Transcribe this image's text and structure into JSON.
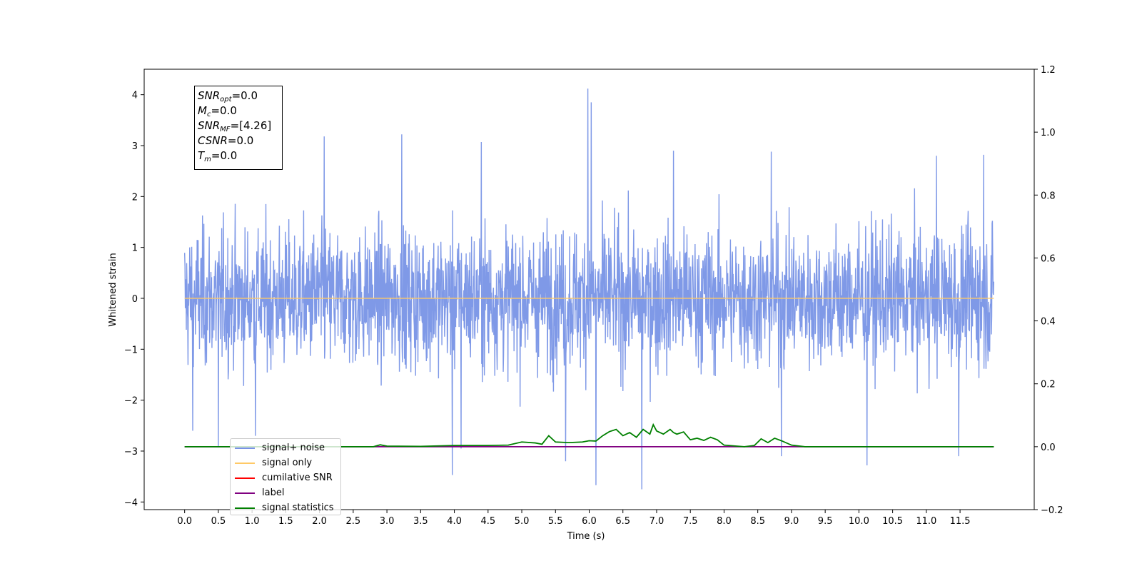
{
  "chart_data": {
    "type": "line",
    "title": "",
    "xlabel": "Time (s)",
    "ylabel": "Whitened strain",
    "xlim": [
      -0.6,
      12.6
    ],
    "ylim": [
      -4.15,
      4.5
    ],
    "y2lim": [
      -0.2,
      1.2
    ],
    "x_ticks": [
      "0.0",
      "0.5",
      "1.0",
      "1.5",
      "2.0",
      "2.5",
      "3.0",
      "3.5",
      "4.0",
      "4.5",
      "5.0",
      "5.5",
      "6.0",
      "6.5",
      "7.0",
      "7.5",
      "8.0",
      "8.5",
      "9.0",
      "9.5",
      "10.0",
      "10.5",
      "11.0",
      "11.5"
    ],
    "y_ticks": [
      "4",
      "3",
      "2",
      "1",
      "0",
      "−1",
      "−2",
      "−3",
      "−4"
    ],
    "y2_ticks": [
      "1.2",
      "1.0",
      "0.8",
      "0.6",
      "0.4",
      "0.2",
      "0.0",
      "−0.2"
    ],
    "grid": false,
    "legend_position": "lower-left",
    "noise_envelope": {
      "time_range": [
        0.0,
        12.0
      ],
      "typical_upper": 1.6,
      "typical_lower": -1.6,
      "spikes": [
        {
          "x": 0.12,
          "y": -2.6
        },
        {
          "x": 0.5,
          "y": -2.9
        },
        {
          "x": 1.05,
          "y": -2.7
        },
        {
          "x": 2.07,
          "y": 3.18
        },
        {
          "x": 3.22,
          "y": 3.22
        },
        {
          "x": 3.97,
          "y": -3.47
        },
        {
          "x": 4.1,
          "y": -2.95
        },
        {
          "x": 4.4,
          "y": 3.07
        },
        {
          "x": 5.65,
          "y": -3.2
        },
        {
          "x": 5.98,
          "y": 4.12
        },
        {
          "x": 6.03,
          "y": 3.85
        },
        {
          "x": 6.1,
          "y": -3.67
        },
        {
          "x": 6.78,
          "y": -3.75
        },
        {
          "x": 7.25,
          "y": 2.9
        },
        {
          "x": 8.7,
          "y": 2.88
        },
        {
          "x": 8.85,
          "y": -3.1
        },
        {
          "x": 10.12,
          "y": -3.28
        },
        {
          "x": 11.15,
          "y": 2.8
        },
        {
          "x": 11.48,
          "y": -3.1
        },
        {
          "x": 11.85,
          "y": 2.82
        }
      ]
    },
    "series": [
      {
        "name": "signal+ noise",
        "color": "#7893e6",
        "axis": "left",
        "kind": "noise"
      },
      {
        "name": "signal only",
        "color": "#ffc966",
        "axis": "left",
        "x": [
          0.0,
          12.0
        ],
        "y": [
          0.0,
          0.0
        ]
      },
      {
        "name": "cumilative SNR",
        "color": "#ff0000",
        "axis": "left",
        "x": [],
        "y": []
      },
      {
        "name": "label",
        "color": "#800080",
        "axis": "right",
        "x": [
          0.0,
          12.0
        ],
        "y": [
          0.0,
          0.0
        ]
      },
      {
        "name": "signal statistics",
        "color": "#008000",
        "axis": "right",
        "x": [
          0.0,
          2.0,
          2.8,
          2.9,
          3.0,
          3.5,
          4.0,
          4.5,
          4.8,
          5.0,
          5.2,
          5.3,
          5.4,
          5.5,
          5.7,
          5.9,
          6.0,
          6.1,
          6.2,
          6.3,
          6.4,
          6.5,
          6.6,
          6.7,
          6.8,
          6.9,
          6.95,
          7.0,
          7.1,
          7.2,
          7.25,
          7.3,
          7.4,
          7.5,
          7.6,
          7.7,
          7.8,
          7.9,
          8.0,
          8.3,
          8.45,
          8.55,
          8.65,
          8.75,
          8.85,
          9.0,
          9.2,
          9.5,
          12.0
        ],
        "y": [
          0.0,
          0.0,
          0.0,
          0.006,
          0.002,
          0.001,
          0.004,
          0.004,
          0.005,
          0.015,
          0.012,
          0.008,
          0.035,
          0.015,
          0.013,
          0.015,
          0.019,
          0.018,
          0.035,
          0.048,
          0.055,
          0.035,
          0.045,
          0.03,
          0.055,
          0.04,
          0.07,
          0.05,
          0.04,
          0.055,
          0.045,
          0.04,
          0.047,
          0.022,
          0.027,
          0.02,
          0.03,
          0.022,
          0.005,
          0.0,
          0.004,
          0.025,
          0.013,
          0.027,
          0.019,
          0.005,
          0.0,
          0.0,
          0.0
        ]
      }
    ]
  },
  "stats_box": {
    "snr_opt_value": "=0.0",
    "mc_value": "=0.0",
    "snr_mf_value": "=[4.26]",
    "csnr_value": "=0.0",
    "tm_value": "=0.0"
  }
}
